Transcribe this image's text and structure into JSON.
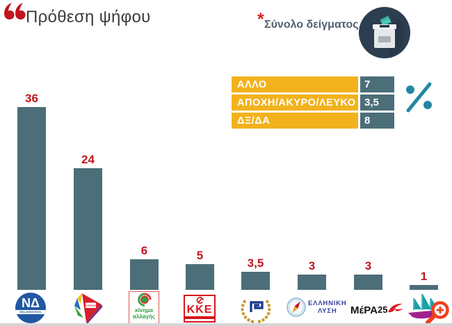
{
  "header": {
    "quote_mark": "“",
    "title": "Πρόθεση ψήφου"
  },
  "sample": {
    "asterisk": "*",
    "label": "Σύνολο δείγματος",
    "icon": "ballot-box-icon"
  },
  "legend": {
    "rows": [
      {
        "label": "ΑΛΛΟ",
        "value": "7"
      },
      {
        "label": "ΑΠΟΧΗ/ΑΚΥΡΟ/ΛΕΥΚΟ",
        "value": "3,5"
      },
      {
        "label": "ΔΞ/ΔΑ",
        "value": "8"
      }
    ],
    "unit_symbol": "%",
    "label_bg": "#F2B21E",
    "value_bg": "#4C6E78"
  },
  "chart_data": {
    "type": "bar",
    "title": "Πρόθεση ψήφου",
    "categories": [
      "ΝΕΑ ΔΗΜΟΚΡΑΤΙΑ",
      "ΣΥΡΙΖΑ",
      "ΚΙΝΗΜΑ ΑΛΛΑΓΗΣ",
      "ΚΚΕ",
      "ΧΡΥΣΗ ΑΥΓΗ",
      "ΕΛΛΗΝΙΚΗ ΛΥΣΗ",
      "ΜέΡΑ25",
      "ΠΛΕΥΣΗ ΕΛΕΥΘΕΡΙΑΣ"
    ],
    "values": [
      36,
      24,
      6,
      5,
      3.5,
      3,
      3,
      1
    ],
    "value_labels": [
      "36",
      "24",
      "6",
      "5",
      "3,5",
      "3",
      "3",
      "1"
    ],
    "bar_color": "#4C6E78",
    "value_color": "#C0161F",
    "ylim": [
      0,
      40
    ],
    "grid": false,
    "legend_position": "top-right",
    "extra_rows": [
      {
        "label": "ΑΛΛΟ",
        "value": 7
      },
      {
        "label": "ΑΠΟΧΗ/ΑΚΥΡΟ/ΛΕΥΚΟ",
        "value": 3.5
      },
      {
        "label": "ΔΞ/ΔΑ",
        "value": 8
      }
    ]
  },
  "logos": {
    "nd": {
      "text": "ΝΔ",
      "subtext": "ΝΕΑ ΔΗΜΟΚΡΑΤΙΑ"
    },
    "syriza": {
      "text": "ΣΥΡΙΖΑ"
    },
    "kinal": {
      "line1": "κίνημα",
      "line2": "αλλαγής"
    },
    "kke": {
      "text": "ΚΚΕ"
    },
    "el": {
      "line1": "ΕΛΛΗΝΙΚΗ",
      "line2": "ΛΥΣΗ"
    },
    "mera": {
      "text": "ΜέΡΑ",
      "suffix": "25"
    }
  }
}
